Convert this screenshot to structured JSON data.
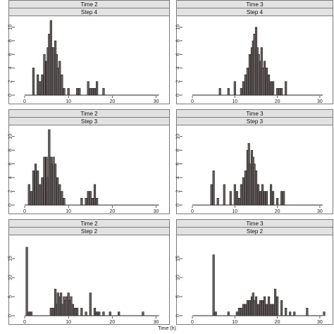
{
  "chart_data": [
    {
      "type": "bar",
      "strip": [
        "Time 2",
        "Step 4"
      ],
      "xlim": [
        0,
        32
      ],
      "ylim": [
        0,
        11
      ],
      "xticks": [
        0,
        10,
        20,
        30
      ],
      "yticks": [
        0,
        2,
        4,
        6,
        8,
        10
      ],
      "x": [
        2.0,
        3.0,
        3.5,
        4.0,
        4.5,
        5.0,
        5.3,
        5.6,
        6.0,
        6.3,
        6.6,
        7.0,
        7.3,
        7.6,
        8.0,
        8.5,
        9.0,
        10.0,
        12.0,
        12.5,
        14.5,
        15.0,
        15.5,
        16.0,
        16.5,
        18.0
      ],
      "values": [
        4,
        3,
        2,
        3,
        6,
        5,
        7,
        9,
        11,
        7,
        7,
        8,
        6,
        4,
        5,
        3,
        1,
        1,
        1,
        1,
        2,
        1,
        1,
        1,
        2,
        1
      ]
    },
    {
      "type": "bar",
      "strip": [
        "Time 3",
        "Step 4"
      ],
      "xlim": [
        0,
        32
      ],
      "ylim": [
        0,
        11
      ],
      "xticks": [
        0,
        10,
        20,
        30
      ],
      "yticks": [
        0,
        2,
        4,
        6,
        8,
        10
      ],
      "x": [
        6.5,
        8.5,
        10.0,
        11.5,
        12.0,
        12.5,
        13.0,
        13.5,
        14.0,
        14.3,
        14.6,
        15.0,
        15.3,
        15.6,
        16.0,
        16.3,
        16.6,
        17.0,
        17.5,
        18.0,
        18.5,
        19.0,
        20.0,
        20.5,
        21.0,
        22.0
      ],
      "values": [
        1,
        1,
        2,
        1,
        2,
        3,
        4,
        6,
        7,
        8,
        9,
        10,
        7,
        6,
        5,
        7,
        4,
        5,
        4,
        3,
        2,
        2,
        1,
        1,
        1,
        2
      ]
    },
    {
      "type": "bar",
      "strip": [
        "Time 2",
        "Step 3"
      ],
      "xlim": [
        0,
        32
      ],
      "ylim": [
        0,
        11
      ],
      "xticks": [
        0,
        10,
        20,
        30
      ],
      "yticks": [
        0,
        2,
        4,
        6,
        8,
        10
      ],
      "x": [
        1.0,
        1.5,
        2.0,
        2.5,
        3.0,
        3.5,
        4.0,
        4.5,
        5.0,
        5.3,
        5.6,
        6.0,
        6.3,
        6.6,
        7.0,
        7.5,
        8.0,
        8.5,
        9.0,
        13.0,
        14.0,
        14.5,
        15.0,
        15.5,
        16.0,
        16.5
      ],
      "values": [
        3,
        2,
        5,
        6,
        5,
        3,
        4,
        7,
        7,
        4,
        11,
        7,
        6,
        7,
        6,
        4,
        3,
        2,
        1,
        1,
        1,
        2,
        2,
        1,
        3,
        1
      ]
    },
    {
      "type": "bar",
      "strip": [
        "Time 3",
        "Step 3"
      ],
      "xlim": [
        0,
        32
      ],
      "ylim": [
        0,
        11
      ],
      "xticks": [
        0,
        10,
        20,
        30
      ],
      "yticks": [
        0,
        2,
        4,
        6,
        8,
        10
      ],
      "x": [
        4.5,
        5.0,
        6.0,
        7.5,
        9.0,
        10.0,
        10.5,
        11.0,
        11.5,
        12.0,
        12.5,
        13.0,
        13.3,
        13.6,
        14.0,
        14.3,
        14.6,
        15.0,
        15.5,
        16.0,
        16.5,
        17.0,
        17.5,
        18.5,
        19.0,
        20.0,
        21.0,
        21.5
      ],
      "values": [
        3,
        5,
        1,
        3,
        2,
        3,
        2,
        1,
        3,
        4,
        5,
        8,
        9,
        6,
        8,
        7,
        6,
        5,
        3,
        2,
        3,
        2,
        2,
        3,
        2,
        1,
        2,
        2
      ]
    },
    {
      "type": "bar",
      "strip": [
        "Time 2",
        "Step 2"
      ],
      "xlim": [
        0,
        32
      ],
      "ylim": [
        0,
        20
      ],
      "xticks": [
        0,
        10,
        20,
        30
      ],
      "yticks": [
        0,
        5,
        10,
        15
      ],
      "x": [
        0.5,
        1.0,
        1.5,
        6.0,
        6.5,
        7.0,
        7.3,
        7.6,
        8.0,
        8.3,
        8.6,
        9.0,
        9.3,
        9.6,
        10.0,
        10.3,
        10.6,
        11.0,
        11.5,
        12.0,
        13.0,
        14.0,
        15.0,
        16.0,
        16.5,
        17.0,
        18.0,
        19.5,
        21.5,
        27.0
      ],
      "values": [
        18,
        1,
        1,
        2,
        2,
        7,
        3,
        6,
        5,
        6,
        3,
        5,
        4,
        5,
        6,
        4,
        5,
        3,
        2,
        2,
        2,
        1,
        6,
        2,
        1,
        1,
        1,
        1,
        1,
        1
      ]
    },
    {
      "type": "bar",
      "strip": [
        "Time 3",
        "Step 2"
      ],
      "xlim": [
        0,
        32
      ],
      "ylim": [
        0,
        20
      ],
      "xticks": [
        0,
        10,
        20,
        30
      ],
      "yticks": [
        0,
        5,
        10,
        15
      ],
      "x": [
        5.0,
        5.5,
        8.5,
        10.5,
        11.0,
        11.5,
        12.0,
        12.5,
        13.0,
        13.5,
        14.0,
        14.3,
        14.6,
        15.0,
        15.5,
        16.0,
        16.5,
        17.0,
        17.5,
        18.0,
        18.5,
        19.0,
        19.5,
        20.0,
        21.0,
        22.0,
        23.0,
        24.0,
        27.0,
        31.0
      ],
      "values": [
        16,
        1,
        1,
        1,
        2,
        2,
        3,
        3,
        4,
        4,
        5,
        6,
        4,
        5,
        3,
        4,
        4,
        5,
        3,
        5,
        3,
        3,
        7,
        5,
        4,
        2,
        1,
        1,
        2,
        1
      ]
    }
  ],
  "xlabel": "Time (h)"
}
